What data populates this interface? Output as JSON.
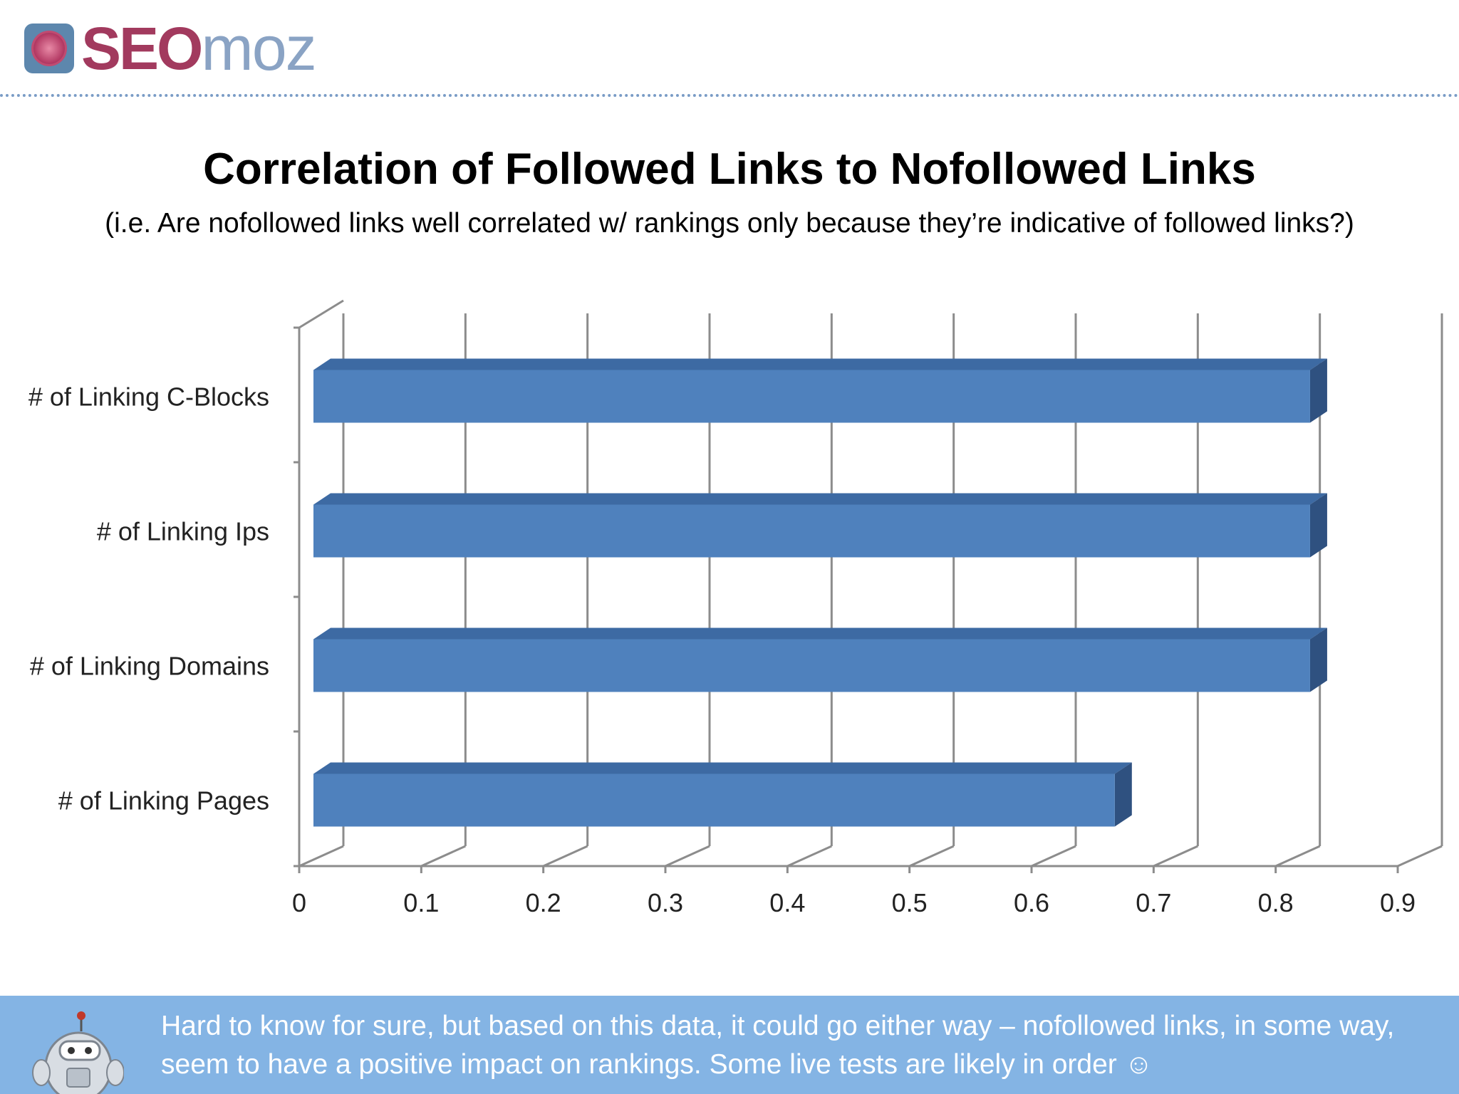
{
  "header": {
    "logo_text_bold": "SEO",
    "logo_text_light": "moz"
  },
  "slide": {
    "title": "Correlation of Followed Links to Nofollowed Links",
    "subtitle": "(i.e. Are  nofollowed links well correlated w/ rankings only because they’re indicative of followed links?)"
  },
  "chart_data": {
    "type": "bar",
    "orientation": "horizontal",
    "style": "3d",
    "categories": [
      "# of Linking C-Blocks",
      "# of Linking Ips",
      "# of Linking Domains",
      "# of Linking Pages"
    ],
    "values": [
      0.82,
      0.82,
      0.82,
      0.66
    ],
    "xlim": [
      0,
      0.9
    ],
    "xticks": [
      "0",
      "0.1",
      "0.2",
      "0.3",
      "0.4",
      "0.5",
      "0.6",
      "0.7",
      "0.8",
      "0.9"
    ],
    "grid": true,
    "colors": {
      "bar_front": "#4f81bd",
      "bar_top": "#3d6aa3",
      "bar_side": "#2f5180"
    }
  },
  "footer": {
    "text": "Hard to know for sure, but based on this data, it could go either way – nofollowed  links, in some way, seem to have a positive  impact on rankings. Some live tests are likely in order ☺"
  }
}
